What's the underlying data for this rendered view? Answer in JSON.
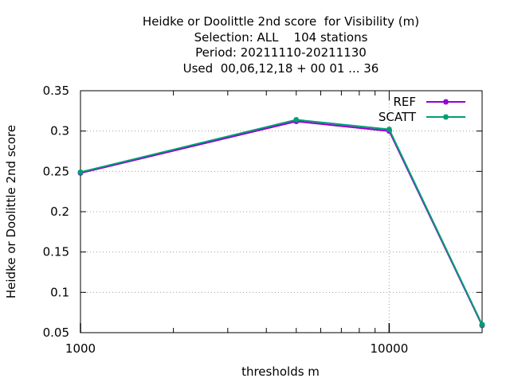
{
  "chart_data": {
    "type": "line",
    "title": [
      "Heidke or Doolittle 2nd score  for Visibility (m)",
      "Selection: ALL    104 stations",
      "Period: 20211110-20211130",
      "Used  00,06,12,18 + 00 01 ... 36"
    ],
    "xlabel": "thresholds m",
    "ylabel": "Heidke or Doolittle 2nd score",
    "x_scale": "log",
    "xlim": [
      1000,
      20000
    ],
    "ylim": [
      0.05,
      0.35
    ],
    "x_major_ticks": [
      {
        "value": 1000,
        "label": "1000"
      },
      {
        "value": 10000,
        "label": "10000"
      }
    ],
    "y_ticks": [
      {
        "value": 0.05,
        "label": "0.05"
      },
      {
        "value": 0.1,
        "label": "0.1"
      },
      {
        "value": 0.15,
        "label": "0.15"
      },
      {
        "value": 0.2,
        "label": "0.2"
      },
      {
        "value": 0.25,
        "label": "0.25"
      },
      {
        "value": 0.3,
        "label": "0.3"
      },
      {
        "value": 0.35,
        "label": "0.35"
      }
    ],
    "grid": true,
    "legend_position": "top-right",
    "x": [
      1000,
      5000,
      10000,
      20000
    ],
    "series": [
      {
        "name": "REF",
        "color": "#9400d3",
        "values": [
          0.248,
          0.312,
          0.3,
          0.059
        ]
      },
      {
        "name": "SCATT",
        "color": "#009e73",
        "values": [
          0.249,
          0.314,
          0.302,
          0.06
        ]
      }
    ]
  }
}
